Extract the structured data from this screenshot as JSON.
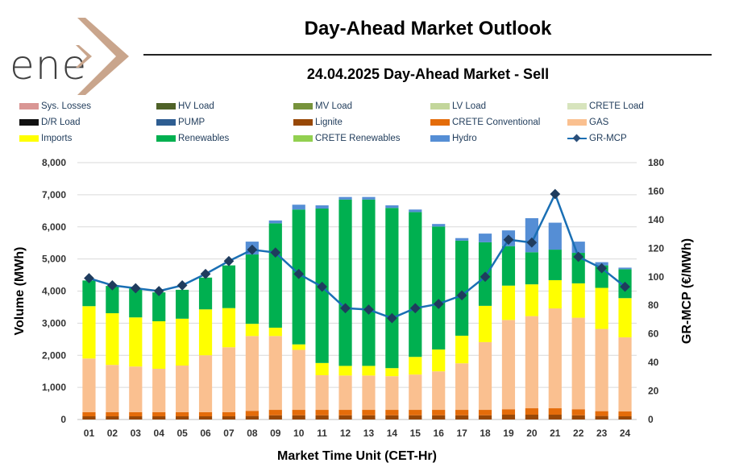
{
  "brand": {
    "logo_text": "ene",
    "logo_mark": "x-mark",
    "logo_color": "#c9a58c"
  },
  "header": {
    "title": "Day-Ahead Market Outlook",
    "subtitle": "24.04.2025  Day-Ahead Market - Sell"
  },
  "chart_data": {
    "type": "bar",
    "stacked": true,
    "categories": [
      "01",
      "02",
      "03",
      "04",
      "05",
      "06",
      "07",
      "08",
      "09",
      "10",
      "11",
      "12",
      "13",
      "14",
      "15",
      "16",
      "17",
      "18",
      "19",
      "20",
      "21",
      "22",
      "23",
      "24"
    ],
    "xlabel": "Market Time Unit (CET-Hr)",
    "ylabel": "Volume (MWh)",
    "y2label": "GR-MCP (€/MWh)",
    "ylim": [
      0,
      8000
    ],
    "y2lim": [
      0,
      180
    ],
    "yticks": [
      "0",
      "1,000",
      "2,000",
      "3,000",
      "4,000",
      "5,000",
      "6,000",
      "7,000",
      "8,000"
    ],
    "y2ticks": [
      "0",
      "20",
      "40",
      "60",
      "80",
      "100",
      "120",
      "140",
      "160",
      "180"
    ],
    "grid": true,
    "legend_position": "top",
    "series": [
      {
        "name": "Sys. Losses",
        "color": "#d99694",
        "values": [
          0,
          0,
          0,
          0,
          0,
          0,
          0,
          0,
          0,
          0,
          0,
          0,
          0,
          0,
          0,
          0,
          0,
          0,
          0,
          0,
          0,
          0,
          0,
          0
        ]
      },
      {
        "name": "HV Load",
        "color": "#4f6228",
        "values": [
          0,
          0,
          0,
          0,
          0,
          0,
          0,
          0,
          0,
          0,
          0,
          0,
          0,
          0,
          0,
          0,
          0,
          0,
          0,
          0,
          0,
          0,
          0,
          0
        ]
      },
      {
        "name": "MV Load",
        "color": "#77933c",
        "values": [
          0,
          0,
          0,
          0,
          0,
          0,
          0,
          0,
          0,
          0,
          0,
          0,
          0,
          0,
          0,
          0,
          0,
          0,
          0,
          0,
          0,
          0,
          0,
          0
        ]
      },
      {
        "name": "LV Load",
        "color": "#c3d69b",
        "values": [
          0,
          0,
          0,
          0,
          0,
          0,
          0,
          0,
          0,
          0,
          0,
          0,
          0,
          0,
          0,
          0,
          0,
          0,
          0,
          0,
          0,
          0,
          0,
          0
        ]
      },
      {
        "name": "CRETE Load",
        "color": "#d7e4bd",
        "values": [
          0,
          0,
          0,
          0,
          0,
          0,
          0,
          0,
          0,
          0,
          0,
          0,
          0,
          0,
          0,
          0,
          0,
          0,
          0,
          0,
          0,
          0,
          0,
          0
        ]
      },
      {
        "name": "D/R Load",
        "color": "#111111",
        "values": [
          0,
          0,
          0,
          0,
          0,
          0,
          0,
          0,
          0,
          0,
          0,
          0,
          0,
          0,
          0,
          0,
          0,
          0,
          0,
          0,
          0,
          0,
          0,
          0
        ]
      },
      {
        "name": "PUMP",
        "color": "#2e5d91",
        "values": [
          0,
          0,
          0,
          0,
          0,
          0,
          0,
          0,
          0,
          0,
          0,
          0,
          0,
          0,
          0,
          0,
          0,
          0,
          0,
          0,
          0,
          0,
          0,
          0
        ]
      },
      {
        "name": "Lignite",
        "color": "#984807",
        "values": [
          100,
          100,
          100,
          100,
          100,
          100,
          100,
          110,
          130,
          130,
          130,
          130,
          130,
          130,
          130,
          130,
          130,
          130,
          150,
          150,
          150,
          130,
          110,
          100
        ]
      },
      {
        "name": "CRETE Conventional",
        "color": "#e46c0a",
        "values": [
          130,
          130,
          130,
          130,
          130,
          130,
          130,
          160,
          170,
          170,
          170,
          170,
          170,
          170,
          170,
          170,
          170,
          170,
          170,
          200,
          200,
          190,
          150,
          150
        ]
      },
      {
        "name": "GAS",
        "color": "#fac090",
        "values": [
          1670,
          1470,
          1420,
          1350,
          1450,
          1770,
          2020,
          2330,
          2300,
          1870,
          1080,
          1070,
          1070,
          1050,
          1100,
          1200,
          1450,
          2110,
          2780,
          2870,
          3110,
          2850,
          2560,
          2310
        ]
      },
      {
        "name": "Imports",
        "color": "#ffff00",
        "values": [
          1630,
          1610,
          1530,
          1480,
          1460,
          1430,
          1220,
          380,
          260,
          170,
          380,
          300,
          300,
          250,
          550,
          680,
          860,
          1130,
          1070,
          990,
          880,
          1070,
          1280,
          1220
        ]
      },
      {
        "name": "Renewables",
        "color": "#00b050",
        "values": [
          800,
          850,
          900,
          900,
          900,
          990,
          1330,
          2160,
          3250,
          4200,
          4810,
          5180,
          5180,
          4990,
          4510,
          3830,
          2960,
          1980,
          1230,
          1000,
          950,
          950,
          700,
          900
        ]
      },
      {
        "name": "CRETE Renewables",
        "color": "#92d050",
        "values": [
          0,
          0,
          0,
          0,
          0,
          0,
          0,
          0,
          0,
          0,
          0,
          0,
          0,
          0,
          0,
          0,
          0,
          0,
          0,
          0,
          0,
          0,
          0,
          0
        ]
      },
      {
        "name": "Hydro",
        "color": "#558ed5",
        "values": [
          0,
          0,
          0,
          0,
          0,
          0,
          0,
          400,
          90,
          150,
          100,
          80,
          80,
          80,
          80,
          80,
          80,
          270,
          490,
          1060,
          840,
          350,
          100,
          50
        ]
      }
    ],
    "line_series": {
      "name": "GR-MCP",
      "color": "#1a6fb4",
      "marker_color": "#1f3c5e",
      "axis": "right",
      "values": [
        99,
        94,
        92,
        90,
        94,
        102,
        111,
        119,
        117,
        102,
        93,
        78,
        77,
        71,
        78,
        81,
        87,
        100,
        126,
        124,
        158,
        114,
        106,
        93
      ]
    }
  }
}
